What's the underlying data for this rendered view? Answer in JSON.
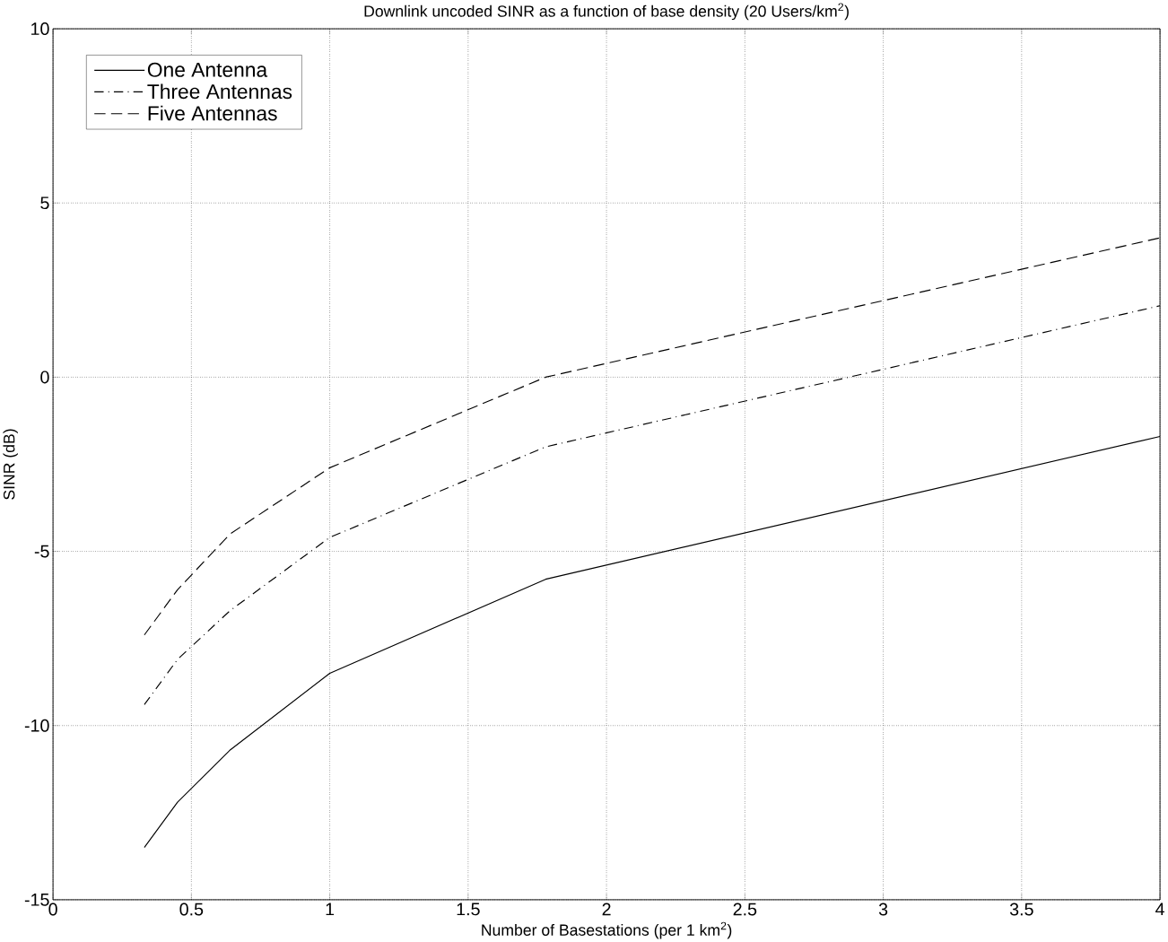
{
  "chart_data": {
    "type": "line",
    "title": "Downlink uncoded SINR as a function of base density (20 Users/km$^{2}$)",
    "xlabel": "Number of Basestations (per 1 km$^{2}$)",
    "ylabel": "SINR (dB)",
    "x": [
      0.33,
      0.45,
      0.64,
      1.0,
      1.78,
      4.0
    ],
    "series": [
      {
        "name": "One Antenna",
        "color": "#000000",
        "line_style": "solid",
        "values": [
          -13.5,
          -12.2,
          -10.7,
          -8.5,
          -5.8,
          -1.7
        ]
      },
      {
        "name": "Three Antennas",
        "color": "#000000",
        "line_style": "dashdot",
        "values": [
          -9.4,
          -8.1,
          -6.7,
          -4.6,
          -2.0,
          2.05
        ]
      },
      {
        "name": "Five Antennas",
        "color": "#000000",
        "line_style": "dashed",
        "values": [
          -7.4,
          -6.1,
          -4.5,
          -2.6,
          0.0,
          4.0
        ]
      }
    ],
    "xlim": [
      0,
      4
    ],
    "ylim": [
      -15,
      10
    ],
    "xticks": [
      0,
      0.5,
      1,
      1.5,
      2,
      2.5,
      3,
      3.5,
      4
    ],
    "yticks": [
      -15,
      -10,
      -5,
      0,
      5,
      10
    ],
    "grid": true,
    "legend": "top left",
    "marker": "none"
  }
}
